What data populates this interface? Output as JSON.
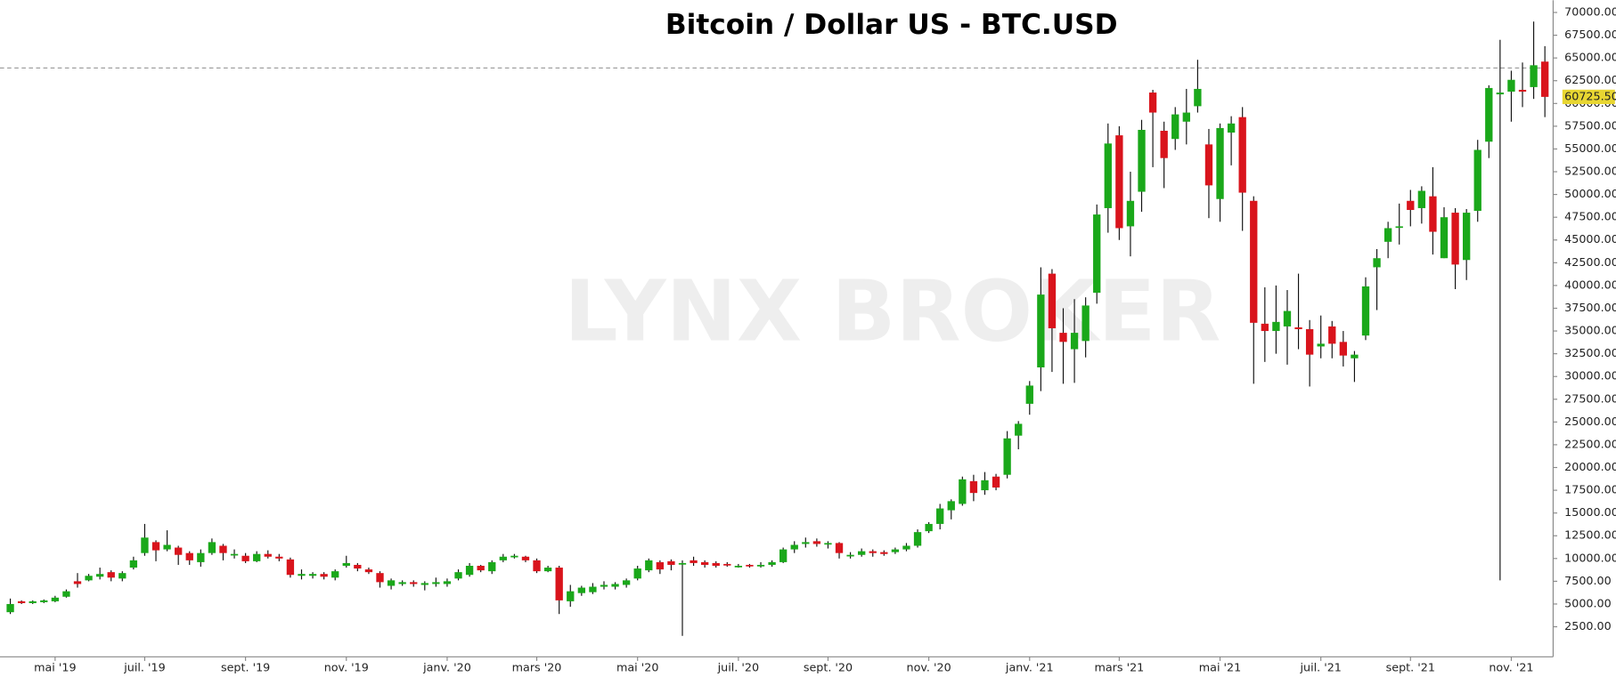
{
  "chart_data": {
    "type": "candlestick",
    "title": "Bitcoin / Dollar US - BTC.USD",
    "watermark": "LYNX BROKER",
    "categories": [
      null,
      null,
      null,
      null,
      "mai '19",
      null,
      null,
      null,
      null,
      null,
      null,
      null,
      "juil. '19",
      null,
      null,
      null,
      null,
      null,
      null,
      null,
      null,
      "sept. '19",
      null,
      null,
      null,
      null,
      null,
      null,
      null,
      null,
      "nov. '19",
      null,
      null,
      null,
      null,
      null,
      null,
      null,
      null,
      "janv. '20",
      null,
      null,
      null,
      null,
      null,
      null,
      null,
      "mars '20",
      null,
      null,
      null,
      null,
      null,
      null,
      null,
      null,
      "mai '20",
      null,
      null,
      null,
      null,
      null,
      null,
      null,
      null,
      "juil. '20",
      null,
      null,
      null,
      null,
      null,
      null,
      null,
      "sept. '20",
      null,
      null,
      null,
      null,
      null,
      null,
      null,
      null,
      "nov. '20",
      null,
      null,
      null,
      null,
      null,
      null,
      null,
      null,
      "janv. '21",
      null,
      null,
      null,
      null,
      null,
      null,
      null,
      "mars '21",
      null,
      null,
      null,
      null,
      null,
      null,
      null,
      null,
      "mai '21",
      null,
      null,
      null,
      null,
      null,
      null,
      null,
      null,
      "juil. '21",
      null,
      null,
      null,
      null,
      null,
      null,
      null,
      "sept. '21",
      null,
      null,
      null,
      null,
      null,
      null,
      null,
      null,
      "nov. '21",
      null,
      null,
      null
    ],
    "open": [
      4100,
      5300,
      5100,
      5200,
      5300,
      5800,
      7500,
      7600,
      8000,
      8500,
      7800,
      9000,
      10600,
      11800,
      11000,
      11200,
      10600,
      9600,
      10600,
      11400,
      10400,
      10300,
      9700,
      10500,
      10200,
      9900,
      8100,
      8100,
      8300,
      7900,
      9200,
      9300,
      8800,
      8400,
      7000,
      7200,
      7400,
      7100,
      7200,
      7200,
      7800,
      8200,
      9200,
      8600,
      9800,
      10200,
      10200,
      9800,
      8600,
      9000,
      5300,
      6200,
      6300,
      6900,
      6900,
      7100,
      7800,
      8700,
      9600,
      9700,
      9400,
      9800,
      9600,
      9500,
      9400,
      9100,
      9300,
      9200,
      9300,
      9600,
      11000,
      11600,
      11900,
      11600,
      11700,
      10300,
      10400,
      10800,
      10700,
      10700,
      11000,
      11400,
      13000,
      13800,
      15300,
      16000,
      18500,
      17500,
      19000,
      19200,
      23500,
      27000,
      31000,
      41300,
      34800,
      33000,
      33900,
      39200,
      48500,
      56500,
      46500,
      50300,
      61200,
      57000,
      56100,
      58000,
      59700,
      55500,
      49500,
      56800,
      58500,
      49300,
      35800,
      35000,
      35500,
      35400,
      35200,
      33300,
      35500,
      33800,
      32000,
      34500,
      42000,
      44800,
      46400,
      49300,
      48500,
      49800,
      43000,
      48000,
      42800,
      48200,
      55800,
      61000,
      61300,
      61500,
      61800,
      64600
    ],
    "high": [
      5600,
      5400,
      5400,
      5500,
      5900,
      6600,
      8400,
      8300,
      9000,
      8700,
      8600,
      10200,
      13800,
      12000,
      13100,
      11400,
      10800,
      11000,
      12200,
      11600,
      11000,
      10600,
      10800,
      10900,
      10500,
      10100,
      8800,
      8500,
      8500,
      8800,
      10300,
      9500,
      9000,
      8600,
      7800,
      7600,
      7600,
      7500,
      7900,
      7800,
      8800,
      9500,
      9300,
      9800,
      10500,
      10500,
      10300,
      10000,
      9200,
      9200,
      7100,
      7000,
      7300,
      7500,
      7400,
      7800,
      9200,
      10000,
      9800,
      9900,
      9800,
      10200,
      9800,
      9700,
      9600,
      9400,
      9400,
      9600,
      9800,
      11200,
      11900,
      12300,
      12200,
      11900,
      11800,
      10700,
      11100,
      11000,
      10900,
      11200,
      11700,
      13200,
      14000,
      16000,
      16500,
      19000,
      19200,
      19500,
      19300,
      24000,
      25100,
      29500,
      42000,
      41800,
      37500,
      38500,
      38700,
      48900,
      57800,
      57500,
      52500,
      58200,
      61500,
      58000,
      59600,
      61600,
      64800,
      57200,
      57800,
      58600,
      59600,
      49800,
      39800,
      40000,
      39500,
      41300,
      36200,
      36700,
      36100,
      35000,
      32800,
      40900,
      44000,
      47000,
      49000,
      50500,
      50900,
      53000,
      48600,
      48500,
      48400,
      56000,
      62000,
      67000,
      63600,
      64500,
      69000,
      66300
    ],
    "low": [
      3900,
      5000,
      5000,
      5100,
      5200,
      5700,
      6800,
      7500,
      7700,
      7500,
      7500,
      8800,
      10300,
      9700,
      10800,
      9300,
      9300,
      9100,
      10400,
      9800,
      10000,
      9500,
      9600,
      10000,
      9700,
      7900,
      7700,
      7800,
      7700,
      7600,
      9000,
      8600,
      8300,
      6800,
      6600,
      7000,
      6900,
      6500,
      6900,
      6900,
      7600,
      8000,
      8500,
      8300,
      9600,
      10000,
      9600,
      8400,
      8500,
      3900,
      4700,
      5900,
      6100,
      6600,
      6600,
      6800,
      7600,
      8500,
      8300,
      8700,
      1500,
      9200,
      9000,
      9000,
      9100,
      9000,
      9000,
      9000,
      9100,
      9500,
      10600,
      11200,
      11300,
      11100,
      10000,
      10000,
      10200,
      10200,
      10300,
      10500,
      10800,
      11200,
      12800,
      13200,
      14300,
      15800,
      16300,
      17000,
      17500,
      18800,
      22000,
      25800,
      28400,
      30500,
      29200,
      29300,
      32100,
      38000,
      45800,
      45000,
      43200,
      48100,
      53000,
      50700,
      54900,
      55500,
      59000,
      47400,
      47000,
      53200,
      46000,
      29200,
      31600,
      32500,
      31300,
      33000,
      28900,
      32000,
      32000,
      31100,
      29400,
      34000,
      37300,
      43000,
      44500,
      46500,
      46800,
      43400,
      43000,
      39600,
      40600,
      47000,
      54000,
      7600,
      58000,
      59600,
      60500,
      58500
    ],
    "close": [
      5000,
      5100,
      5300,
      5400,
      5700,
      6400,
      7200,
      8100,
      8300,
      7900,
      8400,
      9800,
      12300,
      10900,
      11500,
      10400,
      9800,
      10600,
      11800,
      10600,
      10500,
      9700,
      10500,
      10200,
      10000,
      8200,
      8300,
      8300,
      8000,
      8600,
      9500,
      8900,
      8500,
      7400,
      7600,
      7400,
      7200,
      7300,
      7400,
      7500,
      8500,
      9200,
      8700,
      9600,
      10200,
      10300,
      9800,
      8600,
      9000,
      5400,
      6400,
      6800,
      6900,
      7100,
      7200,
      7600,
      8900,
      9800,
      8800,
      9300,
      9500,
      9500,
      9300,
      9200,
      9300,
      9200,
      9200,
      9300,
      9600,
      11000,
      11500,
      11800,
      11600,
      11700,
      10600,
      10400,
      10800,
      10600,
      10500,
      11000,
      11400,
      12900,
      13800,
      15500,
      16300,
      18700,
      17200,
      18600,
      17800,
      23200,
      24800,
      29000,
      39000,
      35300,
      33800,
      34800,
      37800,
      47800,
      55600,
      46300,
      49300,
      57100,
      59000,
      54000,
      58800,
      59000,
      61600,
      51000,
      57300,
      57800,
      50200,
      35900,
      35000,
      36000,
      37200,
      35200,
      32400,
      33600,
      33600,
      32300,
      32400,
      39900,
      43000,
      46300,
      46500,
      48300,
      50400,
      45900,
      47500,
      42300,
      48000,
      54900,
      61700,
      61200,
      62600,
      61300,
      64200,
      60725.5
    ],
    "up_color": "#1aa81a",
    "down_color": "#d9141c",
    "last_price": {
      "value": 60725.5,
      "label": "60725.50"
    },
    "reference_line": 63900,
    "ylim": [
      -800,
      71350
    ],
    "yticks": [
      {
        "value": 2500,
        "label": "2500.00"
      },
      {
        "value": 5000,
        "label": "5000.00"
      },
      {
        "value": 7500,
        "label": "7500.00"
      },
      {
        "value": 10000,
        "label": "10000.00"
      },
      {
        "value": 12500,
        "label": "12500.00"
      },
      {
        "value": 15000,
        "label": "15000.00"
      },
      {
        "value": 17500,
        "label": "17500.00"
      },
      {
        "value": 20000,
        "label": "20000.00"
      },
      {
        "value": 22500,
        "label": "22500.00"
      },
      {
        "value": 25000,
        "label": "25000.00"
      },
      {
        "value": 27500,
        "label": "27500.00"
      },
      {
        "value": 30000,
        "label": "30000.00"
      },
      {
        "value": 32500,
        "label": "32500.00"
      },
      {
        "value": 35000,
        "label": "35000.00"
      },
      {
        "value": 37500,
        "label": "37500.00"
      },
      {
        "value": 40000,
        "label": "40000.00"
      },
      {
        "value": 42500,
        "label": "42500.00"
      },
      {
        "value": 45000,
        "label": "45000.00"
      },
      {
        "value": 47500,
        "label": "47500.00"
      },
      {
        "value": 50000,
        "label": "50000.00"
      },
      {
        "value": 52500,
        "label": "52500.00"
      },
      {
        "value": 55000,
        "label": "55000.00"
      },
      {
        "value": 57500,
        "label": "57500.00"
      },
      {
        "value": 60000,
        "label": "60000.00"
      },
      {
        "value": 62500,
        "label": "62500.00"
      },
      {
        "value": 65000,
        "label": "65000.00"
      },
      {
        "value": 67500,
        "label": "67500.00"
      },
      {
        "value": 70000,
        "label": "70000.00"
      }
    ]
  }
}
